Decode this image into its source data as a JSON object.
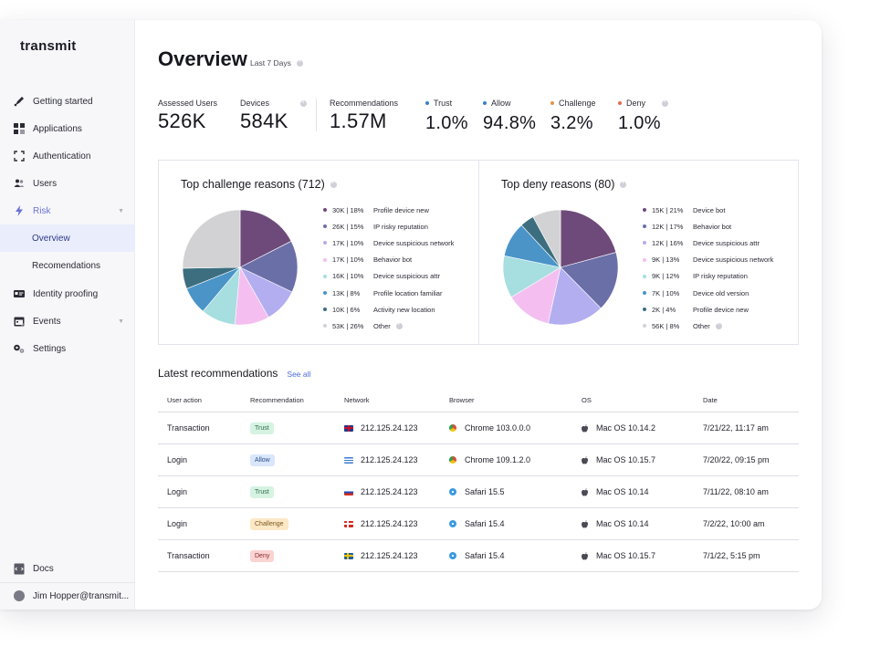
{
  "app": {
    "logo": "transmit"
  },
  "sidebar": {
    "items": [
      {
        "label": "Getting started"
      },
      {
        "label": "Applications"
      },
      {
        "label": "Authentication"
      },
      {
        "label": "Users"
      },
      {
        "label": "Risk"
      },
      {
        "label": "Overview"
      },
      {
        "label": "Recomendations"
      },
      {
        "label": "Identity proofing"
      },
      {
        "label": "Events"
      },
      {
        "label": "Settings"
      }
    ],
    "docs": "Docs",
    "user": "Jim Hopper@transmit..."
  },
  "header": {
    "title": "Overview",
    "range": "Last 7 Days"
  },
  "stats": {
    "assessed_users": {
      "label": "Assessed Users",
      "value": "526K"
    },
    "devices": {
      "label": "Devices",
      "value": "584K"
    },
    "recommendations": {
      "label": "Recommendations",
      "value": "1.57M"
    },
    "trust": {
      "label": "Trust",
      "value": "1.0%",
      "color": "#3b82c6"
    },
    "allow": {
      "label": "Allow",
      "value": "94.8%",
      "color": "#3b82c6"
    },
    "challenge": {
      "label": "Challenge",
      "value": "3.2%",
      "color": "#e8934a"
    },
    "deny": {
      "label": "Deny",
      "value": "1.0%",
      "color": "#e86a4a"
    }
  },
  "challenge_chart": {
    "title": "Top challenge reasons (712)",
    "legend": [
      {
        "value": "30K | 18%",
        "label": "Profile device new",
        "color": "#6e4a7a"
      },
      {
        "value": "26K | 15%",
        "label": "IP risky reputation",
        "color": "#6a6fa8"
      },
      {
        "value": "17K  | 10%",
        "label": "Device suspicious network",
        "color": "#b3aef0"
      },
      {
        "value": "17K  | 10%",
        "label": "Behavior bot",
        "color": "#f4bff0"
      },
      {
        "value": "16K  | 10%",
        "label": "Device suspicious attr",
        "color": "#a7dee0"
      },
      {
        "value": "13K  |  8%",
        "label": "Profile location familiar",
        "color": "#4a94c8"
      },
      {
        "value": "10K  |  6%",
        "label": "Activity new location",
        "color": "#3c6e80"
      },
      {
        "value": "53K  |  26%",
        "label": "Other",
        "color": "#d2d2d4"
      }
    ]
  },
  "deny_chart": {
    "title": "Top deny reasons (80)",
    "legend": [
      {
        "value": "15K  | 21%",
        "label": "Device bot",
        "color": "#6e4a7a"
      },
      {
        "value": "12K  | 17%",
        "label": "Behavior bot",
        "color": "#6a6fa8"
      },
      {
        "value": "12K  | 16%",
        "label": "Device suspicious attr",
        "color": "#b3aef0"
      },
      {
        "value": "9K  | 13%",
        "label": "Device suspicious network",
        "color": "#f4bff0"
      },
      {
        "value": "9K  | 12%",
        "label": "IP risky reputation",
        "color": "#a7dee0"
      },
      {
        "value": "7K  | 10%",
        "label": "Device old version",
        "color": "#4a94c8"
      },
      {
        "value": "2K  |  4%",
        "label": "Profile device new",
        "color": "#3c6e80"
      },
      {
        "value": "56K  |  8%",
        "label": "Other",
        "color": "#d2d2d4"
      }
    ]
  },
  "chart_data": [
    {
      "type": "pie",
      "title": "Top challenge reasons (712)",
      "categories": [
        "Profile device new",
        "IP risky reputation",
        "Device suspicious network",
        "Behavior bot",
        "Device suspicious attr",
        "Profile location familiar",
        "Activity new location",
        "Other"
      ],
      "values": [
        18,
        15,
        10,
        10,
        10,
        8,
        6,
        26
      ]
    },
    {
      "type": "pie",
      "title": "Top deny reasons (80)",
      "categories": [
        "Device bot",
        "Behavior bot",
        "Device suspicious attr",
        "Device suspicious network",
        "IP risky reputation",
        "Device old version",
        "Profile device new",
        "Other"
      ],
      "values": [
        21,
        17,
        16,
        13,
        12,
        10,
        4,
        8
      ]
    }
  ],
  "recommendations": {
    "title": "Latest recommendations",
    "see_all": "See all",
    "columns": [
      "User action",
      "Recommendation",
      "Network",
      "Browser",
      "OS",
      "Date"
    ],
    "rows": [
      {
        "action": "Transaction",
        "rec": "Trust",
        "rec_type": "trust",
        "network": "212.125.24.123",
        "flag": "uk",
        "browser": "Chrome 103.0.0.0",
        "browser_type": "chrome",
        "os": "Mac OS 10.14.2",
        "date": "7/21/22, 11:17 am"
      },
      {
        "action": "Login",
        "rec": "Allow",
        "rec_type": "allow",
        "network": "212.125.24.123",
        "flag": "gr",
        "browser": "Chrome 109.1.2.0",
        "browser_type": "chrome",
        "os": "Mac OS 10.15.7",
        "date": "7/20/22, 09:15 pm"
      },
      {
        "action": "Login",
        "rec": "Trust",
        "rec_type": "trust",
        "network": "212.125.24.123",
        "flag": "ru",
        "browser": "Safari 15.5",
        "browser_type": "safari",
        "os": "Mac OS 10.14",
        "date": "7/11/22, 08:10 am"
      },
      {
        "action": "Login",
        "rec": "Challenge",
        "rec_type": "challenge",
        "network": "212.125.24.123",
        "flag": "no",
        "browser": "Safari 15.4",
        "browser_type": "safari",
        "os": "Mac OS 10.14",
        "date": "7/2/22, 10:00 am"
      },
      {
        "action": "Transaction",
        "rec": "Deny",
        "rec_type": "deny",
        "network": "212.125.24.123",
        "flag": "se",
        "browser": "Safari 15.4",
        "browser_type": "safari",
        "os": "Mac OS 10.15.7",
        "date": "7/1/22, 5:15 pm"
      }
    ]
  }
}
